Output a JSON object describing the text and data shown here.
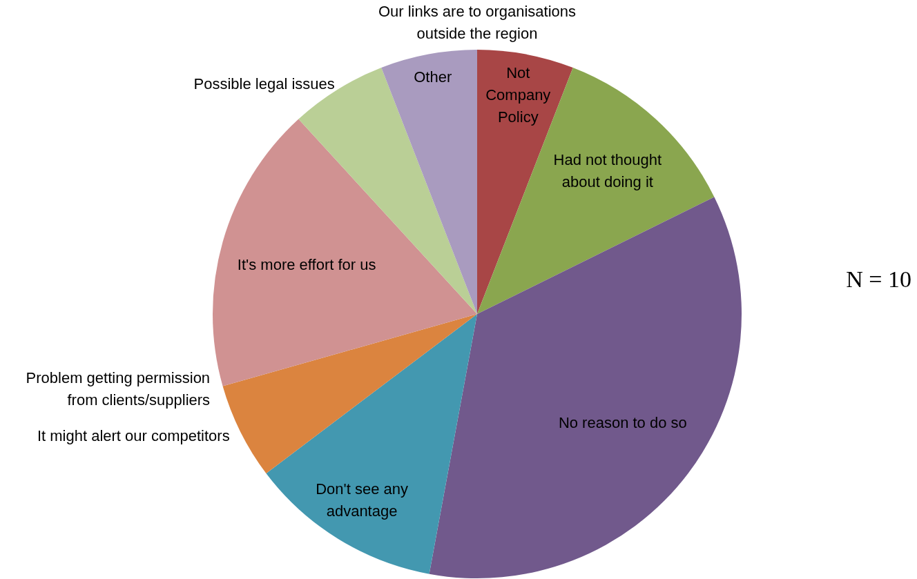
{
  "chart_data": {
    "type": "pie",
    "categories": [
      "Not Company Policy",
      "Had not thought about doing it",
      "No reason to do so",
      "Don't see any advantage",
      "It might alert our competitors",
      "Problem getting permission from clients/suppliers",
      "It's more effort for us",
      "Possible legal issues",
      "Other",
      "Our links are to organisations outside the region"
    ],
    "values": [
      5.9,
      11.8,
      35.2,
      11.8,
      5.9,
      0,
      17.6,
      5.9,
      5.9,
      0
    ],
    "colors": [
      "#a84646",
      "#8aa64f",
      "#71598c",
      "#4398b0",
      "#db843f",
      "#3d6aa0",
      "#d09292",
      "#bacf96",
      "#a99bbf",
      "#4a7ebb"
    ],
    "annotations": [
      "N = 10"
    ],
    "legend": false
  }
}
